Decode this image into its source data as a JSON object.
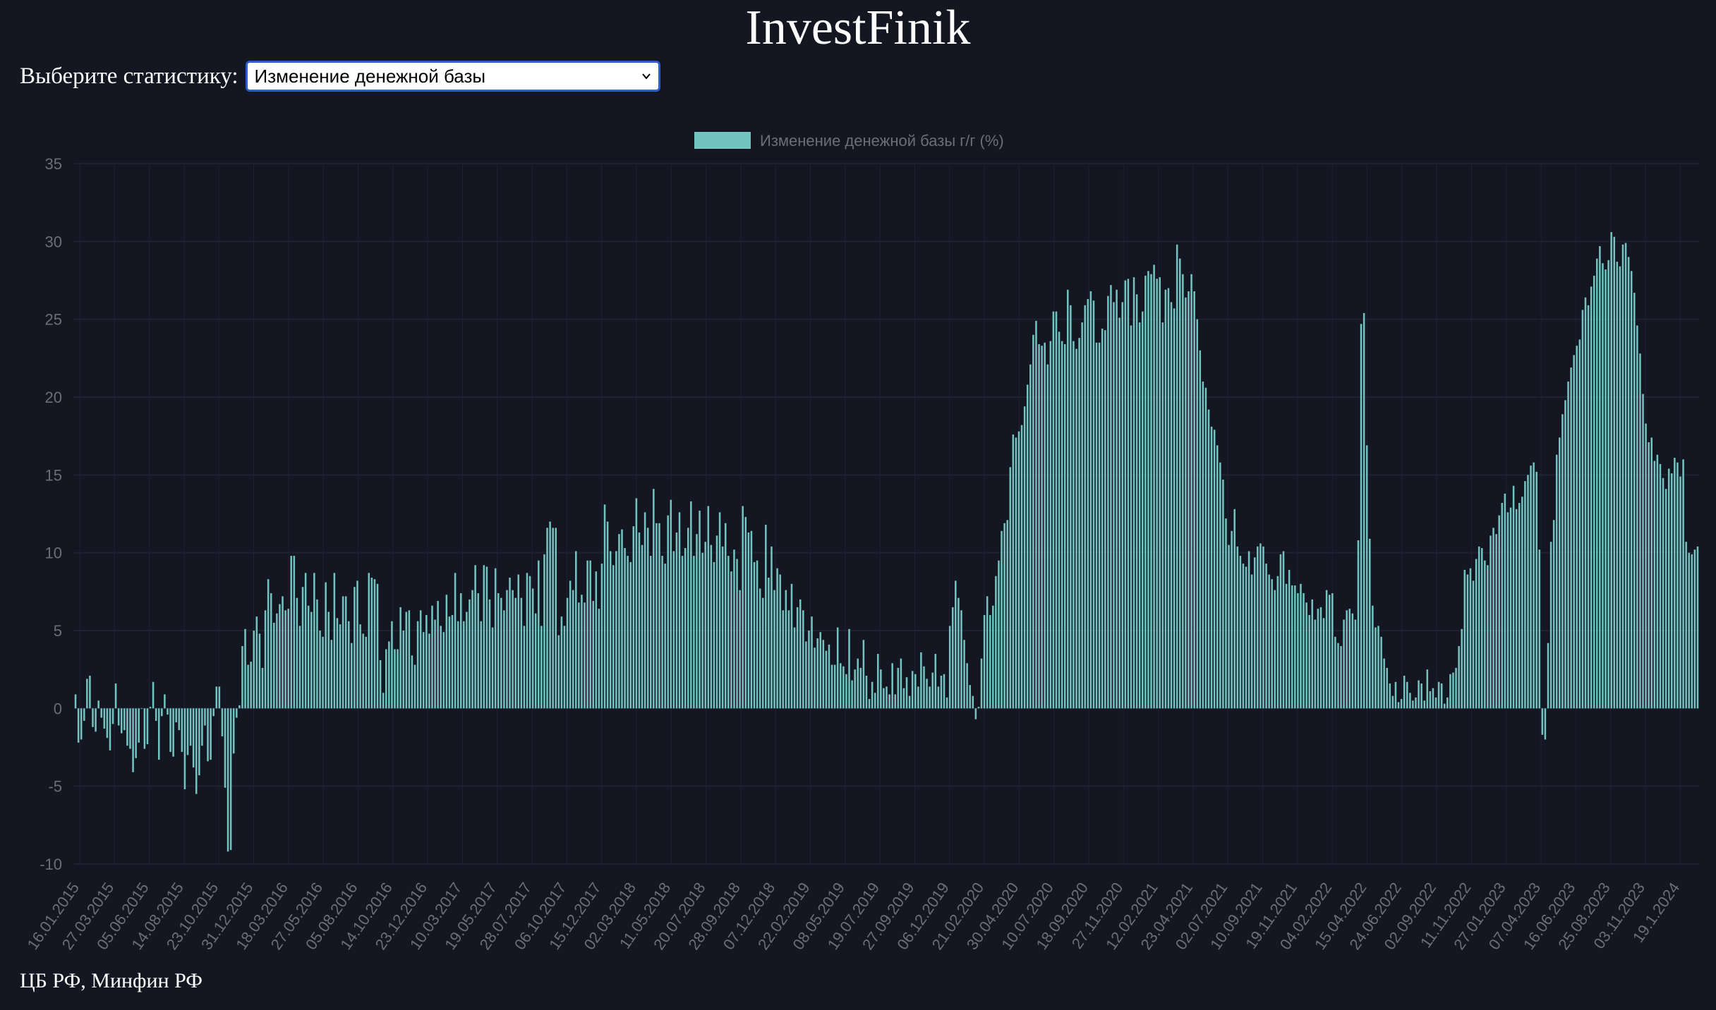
{
  "title": "InvestFinik",
  "selector": {
    "label": "Выберите статистику:",
    "value": "Изменение денежной базы"
  },
  "footer": "ЦБ РФ, Минфин РФ",
  "colors": {
    "background": "#141722",
    "bar": "#73c4c1",
    "grid": "#1f2230",
    "tick": "#6b6e79"
  },
  "icons": {
    "select": "chevron-down-icon"
  },
  "chart_data": {
    "type": "bar",
    "series": [
      {
        "name": "Изменение денежной базы г/г (%)"
      }
    ],
    "legend_position": "top-center",
    "grid": true,
    "ylim": [
      -10,
      35
    ],
    "yticks": [
      35,
      30,
      25,
      20,
      15,
      10,
      5,
      0,
      -5,
      -10
    ],
    "x_tick_labels": [
      "16.01.2015",
      "27.03.2015",
      "05.06.2015",
      "14.08.2015",
      "23.10.2015",
      "31.12.2015",
      "18.03.2016",
      "27.05.2016",
      "05.08.2016",
      "14.10.2016",
      "23.12.2016",
      "10.03.2017",
      "19.05.2017",
      "28.07.2017",
      "06.10.2017",
      "15.12.2017",
      "02.03.2018",
      "11.05.2018",
      "20.07.2018",
      "28.09.2018",
      "07.12.2018",
      "22.02.2019",
      "08.05.2019",
      "19.07.2019",
      "27.09.2019",
      "06.12.2019",
      "21.02.2020",
      "30.04.2020",
      "10.07.2020",
      "18.09.2020",
      "27.11.2020",
      "12.02.2021",
      "23.04.2021",
      "02.07.2021",
      "10.09.2021",
      "19.11.2021",
      "04.02.2022",
      "15.04.2022",
      "24.06.2022",
      "02.09.2022",
      "11.11.2022",
      "27.01.2023",
      "07.04.2023",
      "16.06.2023",
      "25.08.2023",
      "03.11.2023",
      "19.1.2024"
    ],
    "values": [
      0.9,
      -2.2,
      -2.0,
      -0.8,
      1.9,
      2.1,
      -1.2,
      -1.5,
      0.5,
      -0.6,
      -1.3,
      -1.9,
      -2.7,
      -1.0,
      1.6,
      -1.1,
      -1.6,
      -1.4,
      -2.4,
      -2.6,
      -4.1,
      -3.2,
      -2.2,
      0.0,
      -2.6,
      -2.3,
      0.1,
      1.7,
      -0.8,
      -3.3,
      -0.5,
      0.9,
      -0.4,
      -2.8,
      -3.1,
      -0.9,
      -1.4,
      -2.8,
      -5.2,
      -3.0,
      -2.4,
      -3.8,
      -5.5,
      -4.3,
      -2.4,
      -1.1,
      -3.4,
      -3.3,
      -0.5,
      1.4,
      1.4,
      -1.8,
      -5.1,
      -9.2,
      -9.1,
      -2.9,
      -0.6,
      0.2,
      4.0,
      5.1,
      2.8,
      3.0,
      5.0,
      5.9,
      4.8,
      2.6,
      6.3,
      8.3,
      7.4,
      5.5,
      6.1,
      6.7,
      7.2,
      6.3,
      6.4,
      9.8,
      9.8,
      7.1,
      5.3,
      7.8,
      8.7,
      6.6,
      6.2,
      8.7,
      7.0,
      5.0,
      4.6,
      8.1,
      6.2,
      4.4,
      8.7,
      5.8,
      5.4,
      7.2,
      7.2,
      5.6,
      4.2,
      7.8,
      8.2,
      5.4,
      4.8,
      4.6,
      8.7,
      8.4,
      8.3,
      8.0,
      3.1,
      1.0,
      3.8,
      4.3,
      5.6,
      3.8,
      3.8,
      6.5,
      5.0,
      6.2,
      6.3,
      3.4,
      2.8,
      5.6,
      6.3,
      4.9,
      6.0,
      4.8,
      6.6,
      5.7,
      6.9,
      5.3,
      4.9,
      7.3,
      5.9,
      6.0,
      8.7,
      5.6,
      7.4,
      5.6,
      6.2,
      7.0,
      7.6,
      9.2,
      7.4,
      5.6,
      9.2,
      9.1,
      7.0,
      5.2,
      9.0,
      7.4,
      7.1,
      6.3,
      7.6,
      8.4,
      7.6,
      7.1,
      8.6,
      7.1,
      5.3,
      8.7,
      8.5,
      7.7,
      6.1,
      9.5,
      5.3,
      9.9,
      11.6,
      12.0,
      11.6,
      11.6,
      4.7,
      5.9,
      5.3,
      7.1,
      8.2,
      7.6,
      10.1,
      6.8,
      7.3,
      6.8,
      9.5,
      9.5,
      6.9,
      8.8,
      6.4,
      9.3,
      13.1,
      12.0,
      10.1,
      9.2,
      10.1,
      11.2,
      11.5,
      10.3,
      9.8,
      9.4,
      11.7,
      13.5,
      11.3,
      10.5,
      12.6,
      11.6,
      9.8,
      14.1,
      11.9,
      11.9,
      9.8,
      9.3,
      12.4,
      13.4,
      10.1,
      11.3,
      12.6,
      9.8,
      10.3,
      11.6,
      13.3,
      9.8,
      11.2,
      12.7,
      10.0,
      10.7,
      13.0,
      10.5,
      9.4,
      11.1,
      12.6,
      10.4,
      11.9,
      9.8,
      8.8,
      10.2,
      9.6,
      7.6,
      13.0,
      12.3,
      11.3,
      11.4,
      9.4,
      9.5,
      7.7,
      7.1,
      11.8,
      8.4,
      10.4,
      7.6,
      9.0,
      8.6,
      6.3,
      7.6,
      6.3,
      8.0,
      5.2,
      6.5,
      7.0,
      6.3,
      4.3,
      5.0,
      5.9,
      3.9,
      4.5,
      4.9,
      4.4,
      3.7,
      4.1,
      2.8,
      2.8,
      5.2,
      2.9,
      2.7,
      2.2,
      5.1,
      1.8,
      2.5,
      3.2,
      2.6,
      4.4,
      2.1,
      0.6,
      1.7,
      1.0,
      3.5,
      2.5,
      1.3,
      1.4,
      0.9,
      2.9,
      0.9,
      2.6,
      3.2,
      1.3,
      2.0,
      0.8,
      2.4,
      2.2,
      1.4,
      3.6,
      2.7,
      1.9,
      1.4,
      2.3,
      3.5,
      1.4,
      2.1,
      2.2,
      0.7,
      5.3,
      6.5,
      8.2,
      7.1,
      6.3,
      4.4,
      2.9,
      1.5,
      0.8,
      -0.7,
      0.1,
      3.2,
      6.0,
      7.2,
      6.0,
      6.6,
      8.5,
      9.5,
      11.4,
      11.9,
      12.1,
      15.5,
      17.6,
      17.4,
      17.8,
      18.2,
      19.4,
      20.8,
      22.1,
      24.0,
      24.9,
      23.4,
      23.3,
      23.5,
      22.1,
      23.6,
      25.5,
      25.5,
      24.2,
      23.6,
      23.4,
      26.9,
      25.9,
      23.6,
      23.1,
      23.8,
      24.8,
      25.9,
      26.3,
      26.8,
      26.2,
      23.5,
      23.5,
      24.4,
      24.3,
      26.5,
      27.2,
      26.1,
      26.9,
      25.1,
      26.1,
      27.5,
      27.6,
      24.6,
      27.7,
      26.6,
      24.8,
      25.5,
      27.8,
      28.1,
      27.9,
      28.5,
      27.6,
      27.7,
      24.8,
      26.9,
      27.0,
      26.1,
      25.7,
      29.8,
      28.9,
      27.9,
      26.4,
      26.8,
      27.9,
      26.8,
      25.0,
      23.0,
      21.0,
      20.6,
      19.2,
      18.1,
      17.9,
      16.9,
      15.8,
      14.7,
      12.2,
      10.5,
      11.4,
      12.8,
      10.4,
      9.8,
      9.3,
      9.1,
      10.1,
      8.6,
      9.7,
      10.4,
      10.6,
      10.4,
      9.3,
      8.6,
      8.3,
      7.6,
      8.5,
      9.9,
      10.1,
      8.0,
      8.9,
      7.9,
      7.9,
      7.4,
      8.0,
      7.4,
      6.8,
      6.0,
      7.0,
      5.7,
      6.4,
      6.5,
      5.8,
      7.6,
      7.3,
      7.4,
      4.6,
      4.2,
      4.0,
      5.7,
      6.3,
      6.4,
      6.1,
      5.7,
      10.8,
      24.7,
      25.4,
      16.9,
      10.9,
      6.6,
      5.2,
      5.3,
      4.6,
      3.2,
      2.6,
      1.6,
      0.8,
      1.7,
      0.4,
      0.6,
      2.1,
      1.7,
      1.0,
      0.5,
      0.7,
      1.8,
      1.6,
      0.5,
      2.5,
      1.1,
      1.3,
      0.7,
      1.7,
      1.6,
      0.3,
      0.7,
      2.2,
      2.3,
      2.6,
      4.0,
      5.1,
      8.9,
      8.6,
      9.0,
      8.2,
      9.6,
      10.4,
      10.3,
      9.5,
      9.2,
      11.1,
      11.6,
      11.2,
      12.4,
      13.2,
      13.8,
      12.6,
      12.9,
      14.3,
      12.8,
      13.2,
      13.6,
      14.6,
      15.0,
      15.6,
      15.8,
      15.2,
      10.2,
      -1.7,
      -2.0,
      4.2,
      10.7,
      12.1,
      16.3,
      17.4,
      18.9,
      19.8,
      21.0,
      21.9,
      22.7,
      23.3,
      23.7,
      25.6,
      26.4,
      25.9,
      27.1,
      27.8,
      28.9,
      29.7,
      28.6,
      28.2,
      28.8,
      30.6,
      30.3,
      28.7,
      28.4,
      29.8,
      29.9,
      29.0,
      28.1,
      26.7,
      24.6,
      22.8,
      20.2,
      18.3,
      17.1,
      17.4,
      15.9,
      16.3,
      15.7,
      14.8,
      14.1,
      15.4,
      15.1,
      16.1,
      15.8,
      14.9,
      16.0,
      10.7,
      10.0,
      9.9,
      10.2,
      10.4
    ]
  }
}
